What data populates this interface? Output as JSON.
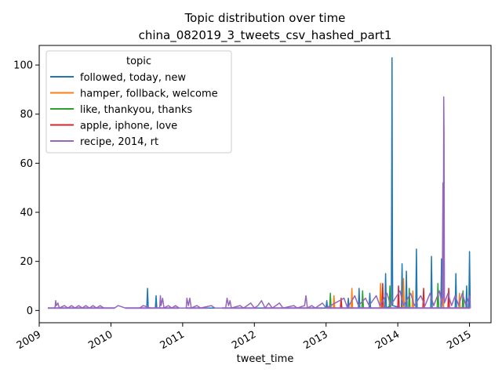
{
  "chart_data": {
    "type": "line",
    "title_line1": "Topic distribution over time",
    "title_line2": "china_082019_3_tweets_csv_hashed_part1",
    "xlabel": "tweet_time",
    "ylabel": "",
    "legend_title": "topic",
    "legend_position": "top-left",
    "grid": false,
    "xlim": [
      2009.0,
      2015.3
    ],
    "ylim": [
      -5,
      108
    ],
    "xticks": [
      {
        "value": 2009,
        "label": "2009"
      },
      {
        "value": 2010,
        "label": "2010"
      },
      {
        "value": 2011,
        "label": "2011"
      },
      {
        "value": 2012,
        "label": "2012"
      },
      {
        "value": 2013,
        "label": "2013"
      },
      {
        "value": 2014,
        "label": "2014"
      },
      {
        "value": 2015,
        "label": "2015"
      }
    ],
    "yticks": [
      {
        "value": 0,
        "label": "0"
      },
      {
        "value": 20,
        "label": "20"
      },
      {
        "value": 40,
        "label": "40"
      },
      {
        "value": 60,
        "label": "60"
      },
      {
        "value": 80,
        "label": "80"
      },
      {
        "value": 100,
        "label": "100"
      }
    ],
    "series": [
      {
        "name": "followed, today, new",
        "color": "#1f77b4",
        "points": [
          [
            2010.5,
            1
          ],
          [
            2010.51,
            9
          ],
          [
            2010.52,
            1
          ],
          [
            2010.62,
            1
          ],
          [
            2010.63,
            6
          ],
          [
            2010.64,
            1
          ],
          [
            2013.0,
            1
          ],
          [
            2013.01,
            4
          ],
          [
            2013.02,
            1
          ],
          [
            2013.3,
            1
          ],
          [
            2013.31,
            5
          ],
          [
            2013.32,
            1
          ],
          [
            2013.45,
            1
          ],
          [
            2013.46,
            9
          ],
          [
            2013.47,
            1
          ],
          [
            2013.6,
            1
          ],
          [
            2013.61,
            7
          ],
          [
            2013.62,
            1
          ],
          [
            2013.82,
            1
          ],
          [
            2013.83,
            15
          ],
          [
            2013.84,
            1
          ],
          [
            2013.91,
            2
          ],
          [
            2013.92,
            103
          ],
          [
            2013.925,
            24
          ],
          [
            2013.93,
            2
          ],
          [
            2014.05,
            1
          ],
          [
            2014.06,
            19
          ],
          [
            2014.07,
            1
          ],
          [
            2014.11,
            1
          ],
          [
            2014.12,
            16
          ],
          [
            2014.13,
            1
          ],
          [
            2014.25,
            1
          ],
          [
            2014.26,
            25
          ],
          [
            2014.27,
            1
          ],
          [
            2014.46,
            1
          ],
          [
            2014.47,
            22
          ],
          [
            2014.48,
            1
          ],
          [
            2014.6,
            1
          ],
          [
            2014.61,
            21
          ],
          [
            2014.62,
            1
          ],
          [
            2014.8,
            1
          ],
          [
            2014.81,
            15
          ],
          [
            2014.82,
            1
          ],
          [
            2014.95,
            1
          ],
          [
            2014.96,
            10
          ],
          [
            2014.97,
            1
          ],
          [
            2014.99,
            1
          ],
          [
            2015.0,
            24
          ],
          [
            2015.01,
            1
          ]
        ]
      },
      {
        "name": "hamper, follback, welcome",
        "color": "#ff7f0e",
        "points": [
          [
            2013.1,
            1
          ],
          [
            2013.11,
            6
          ],
          [
            2013.12,
            1
          ],
          [
            2013.35,
            1
          ],
          [
            2013.36,
            9
          ],
          [
            2013.37,
            1
          ],
          [
            2013.75,
            1
          ],
          [
            2013.76,
            11
          ],
          [
            2013.77,
            1
          ],
          [
            2014.07,
            1
          ],
          [
            2014.08,
            13
          ],
          [
            2014.09,
            1
          ],
          [
            2014.2,
            1
          ],
          [
            2014.21,
            8
          ],
          [
            2014.22,
            1
          ],
          [
            2014.62,
            1
          ],
          [
            2014.63,
            16
          ],
          [
            2014.64,
            1
          ],
          [
            2014.85,
            1
          ],
          [
            2014.86,
            7
          ],
          [
            2014.87,
            1
          ]
        ]
      },
      {
        "name": "like, thankyou, thanks",
        "color": "#2ca02c",
        "points": [
          [
            2013.05,
            1
          ],
          [
            2013.06,
            7
          ],
          [
            2013.07,
            1
          ],
          [
            2013.5,
            1
          ],
          [
            2013.51,
            8
          ],
          [
            2013.52,
            1
          ],
          [
            2013.88,
            1
          ],
          [
            2013.89,
            10
          ],
          [
            2013.9,
            1
          ],
          [
            2014.15,
            1
          ],
          [
            2014.16,
            9
          ],
          [
            2014.17,
            1
          ],
          [
            2014.55,
            1
          ],
          [
            2014.56,
            11
          ],
          [
            2014.57,
            1
          ],
          [
            2014.9,
            1
          ],
          [
            2014.91,
            8
          ],
          [
            2014.92,
            1
          ]
        ]
      },
      {
        "name": "apple, iphone, love",
        "color": "#d62728",
        "points": [
          [
            2013.2,
            1
          ],
          [
            2013.21,
            5
          ],
          [
            2013.22,
            1
          ],
          [
            2013.78,
            1
          ],
          [
            2013.79,
            11
          ],
          [
            2013.8,
            1
          ],
          [
            2014.0,
            1
          ],
          [
            2014.01,
            10
          ],
          [
            2014.02,
            1
          ],
          [
            2014.35,
            1
          ],
          [
            2014.36,
            9
          ],
          [
            2014.37,
            1
          ],
          [
            2014.7,
            1
          ],
          [
            2014.71,
            9
          ],
          [
            2014.72,
            1
          ]
        ]
      },
      {
        "name": "recipe, 2014, rt",
        "color": "#9467bd",
        "points": [
          [
            2009.12,
            1
          ],
          [
            2009.22,
            1
          ],
          [
            2009.23,
            4
          ],
          [
            2009.24,
            2
          ],
          [
            2009.26,
            3
          ],
          [
            2009.28,
            1
          ],
          [
            2009.35,
            2
          ],
          [
            2009.4,
            1
          ],
          [
            2009.45,
            2
          ],
          [
            2009.5,
            1
          ],
          [
            2009.55,
            2
          ],
          [
            2009.6,
            1
          ],
          [
            2009.65,
            2
          ],
          [
            2009.7,
            1
          ],
          [
            2009.75,
            2
          ],
          [
            2009.8,
            1
          ],
          [
            2009.85,
            2
          ],
          [
            2009.9,
            1
          ],
          [
            2010.05,
            1
          ],
          [
            2010.1,
            2
          ],
          [
            2010.2,
            1
          ],
          [
            2010.4,
            1
          ],
          [
            2010.45,
            2
          ],
          [
            2010.55,
            1
          ],
          [
            2010.68,
            1
          ],
          [
            2010.69,
            6
          ],
          [
            2010.7,
            2
          ],
          [
            2010.72,
            5
          ],
          [
            2010.74,
            1
          ],
          [
            2010.8,
            2
          ],
          [
            2010.85,
            1
          ],
          [
            2010.9,
            2
          ],
          [
            2010.95,
            1
          ],
          [
            2011.05,
            1
          ],
          [
            2011.06,
            5
          ],
          [
            2011.08,
            2
          ],
          [
            2011.1,
            5
          ],
          [
            2011.12,
            1
          ],
          [
            2011.2,
            2
          ],
          [
            2011.25,
            1
          ],
          [
            2011.4,
            2
          ],
          [
            2011.45,
            1
          ],
          [
            2011.6,
            1
          ],
          [
            2011.62,
            5
          ],
          [
            2011.64,
            2
          ],
          [
            2011.66,
            4
          ],
          [
            2011.68,
            1
          ],
          [
            2011.8,
            2
          ],
          [
            2011.85,
            1
          ],
          [
            2011.95,
            3
          ],
          [
            2012.0,
            1
          ],
          [
            2012.05,
            2
          ],
          [
            2012.1,
            4
          ],
          [
            2012.15,
            1
          ],
          [
            2012.2,
            3
          ],
          [
            2012.25,
            1
          ],
          [
            2012.3,
            2
          ],
          [
            2012.35,
            3
          ],
          [
            2012.4,
            1
          ],
          [
            2012.55,
            2
          ],
          [
            2012.6,
            1
          ],
          [
            2012.7,
            2
          ],
          [
            2012.72,
            6
          ],
          [
            2012.74,
            1
          ],
          [
            2012.8,
            2
          ],
          [
            2012.85,
            1
          ],
          [
            2012.95,
            3
          ],
          [
            2013.0,
            1
          ],
          [
            2013.25,
            5
          ],
          [
            2013.3,
            1
          ],
          [
            2013.4,
            6
          ],
          [
            2013.45,
            2
          ],
          [
            2013.55,
            5
          ],
          [
            2013.6,
            2
          ],
          [
            2013.7,
            6
          ],
          [
            2013.75,
            2
          ],
          [
            2013.85,
            7
          ],
          [
            2013.9,
            2
          ],
          [
            2014.03,
            8
          ],
          [
            2014.08,
            2
          ],
          [
            2014.18,
            7
          ],
          [
            2014.23,
            2
          ],
          [
            2014.32,
            6
          ],
          [
            2014.38,
            2
          ],
          [
            2014.45,
            7
          ],
          [
            2014.5,
            2
          ],
          [
            2014.58,
            8
          ],
          [
            2014.62,
            2
          ],
          [
            2014.63,
            52
          ],
          [
            2014.635,
            5
          ],
          [
            2014.64,
            87
          ],
          [
            2014.645,
            73
          ],
          [
            2014.65,
            3
          ],
          [
            2014.7,
            7
          ],
          [
            2014.75,
            2
          ],
          [
            2014.8,
            6
          ],
          [
            2014.85,
            2
          ],
          [
            2014.9,
            7
          ],
          [
            2014.95,
            2
          ],
          [
            2015.0,
            6
          ],
          [
            2015.01,
            1
          ]
        ]
      }
    ]
  }
}
